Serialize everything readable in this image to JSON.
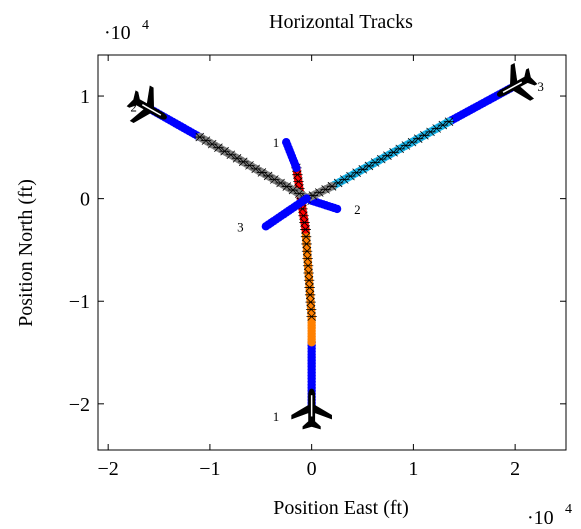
{
  "chart_data": {
    "type": "scatter",
    "title": "Horizontal Tracks",
    "xlabel": "Position East (ft)",
    "ylabel": "Position North (ft)",
    "x_scale_label": "·10^4",
    "y_scale_label": "·10^4",
    "xlim": [
      -2.1,
      2.5
    ],
    "ylim": [
      -2.45,
      1.4
    ],
    "xticks": [
      -2,
      -1,
      0,
      1,
      2
    ],
    "yticks": [
      -2,
      -1,
      0,
      1
    ],
    "xtick_labels": [
      "−2",
      "−1",
      "0",
      "1",
      "2"
    ],
    "ytick_labels": [
      "−2",
      "−1",
      "0",
      "1"
    ],
    "grid": false,
    "colors": {
      "blue": "#0000ff",
      "red": "#ff0000",
      "orange": "#ff8000",
      "gray": "#808080",
      "cyan": "#1ab2e6",
      "marker": "#000000"
    },
    "series": [
      {
        "label": "1",
        "start": [
          0.0,
          -2.05
        ],
        "path": [
          [
            0.0,
            -2.05
          ],
          [
            0.0,
            -1.4
          ],
          [
            0.0,
            -0.9
          ],
          [
            -0.03,
            -0.4
          ],
          [
            -0.1,
            0.0
          ],
          [
            -0.15,
            0.3
          ],
          [
            -0.25,
            0.55
          ]
        ],
        "segments": [
          {
            "from": [
              0.0,
              -2.05
            ],
            "to": [
              0.0,
              -1.4
            ],
            "color": "blue"
          },
          {
            "from": [
              0.0,
              -1.4
            ],
            "to": [
              0.0,
              -1.15
            ],
            "color": "orange"
          },
          {
            "from": [
              0.0,
              -1.15
            ],
            "to": [
              -0.06,
              -0.3
            ],
            "color": "orange",
            "marked": true
          },
          {
            "from": [
              -0.06,
              -0.3
            ],
            "to": [
              -0.15,
              0.3
            ],
            "color": "red",
            "marked": true
          },
          {
            "from": [
              -0.15,
              0.3
            ],
            "to": [
              -0.25,
              0.55
            ],
            "color": "blue"
          }
        ],
        "label_pos": [
          -0.35,
          0.55
        ],
        "end_label_pos": [
          -0.35,
          -2.12
        ]
      },
      {
        "label": "2",
        "start": [
          -1.6,
          0.88
        ],
        "path": [
          [
            -1.6,
            0.88
          ],
          [
            -1.1,
            0.6
          ],
          [
            0.0,
            -0.02
          ],
          [
            0.25,
            -0.1
          ]
        ],
        "segments": [
          {
            "from": [
              -1.6,
              0.88
            ],
            "to": [
              -1.1,
              0.6
            ],
            "color": "blue"
          },
          {
            "from": [
              -1.1,
              0.6
            ],
            "to": [
              0.0,
              -0.02
            ],
            "color": "gray",
            "marked": true
          },
          {
            "from": [
              0.0,
              -0.02
            ],
            "to": [
              0.25,
              -0.1
            ],
            "color": "blue"
          }
        ],
        "label_pos": [
          -1.75,
          0.9
        ],
        "end_label_pos": [
          0.45,
          -0.1
        ]
      },
      {
        "label": "3",
        "start": [
          2.0,
          1.1
        ],
        "path": [
          [
            2.0,
            1.1
          ],
          [
            1.35,
            0.75
          ],
          [
            0.2,
            0.12
          ],
          [
            -0.45,
            -0.27
          ]
        ],
        "segments": [
          {
            "from": [
              2.0,
              1.1
            ],
            "to": [
              1.35,
              0.75
            ],
            "color": "blue"
          },
          {
            "from": [
              1.35,
              0.75
            ],
            "to": [
              0.2,
              0.12
            ],
            "color": "cyan",
            "marked": true
          },
          {
            "from": [
              0.2,
              0.12
            ],
            "to": [
              -0.05,
              0.0
            ],
            "color": "gray",
            "marked": true
          },
          {
            "from": [
              -0.05,
              0.0
            ],
            "to": [
              -0.45,
              -0.27
            ],
            "color": "blue"
          }
        ],
        "label_pos": [
          2.25,
          1.1
        ],
        "end_label_pos": [
          -0.7,
          -0.27
        ]
      }
    ]
  }
}
